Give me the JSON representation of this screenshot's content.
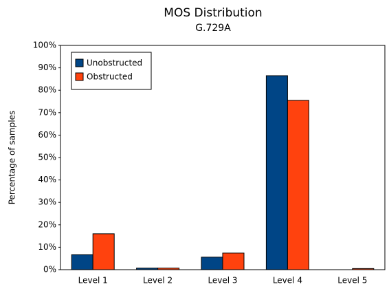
{
  "chart_data": {
    "type": "bar",
    "title": "MOS Distribution",
    "subtitle": "G.729A",
    "y_label": "Percentage of samples",
    "categories": [
      "Level 1",
      "Level 2",
      "Level 3",
      "Level 4",
      "Level 5"
    ],
    "series": [
      {
        "name": "Unobstructed",
        "color": "#004586",
        "values": [
          6.7,
          0.7,
          5.6,
          86.5,
          0
        ]
      },
      {
        "name": "Obstructed",
        "color": "#ff420e",
        "values": [
          16,
          0.7,
          7.4,
          75.5,
          0.5
        ]
      }
    ],
    "ylim": [
      0,
      100
    ],
    "yticks": [
      {
        "value": 0,
        "label": "0%"
      },
      {
        "value": 10,
        "label": "10%"
      },
      {
        "value": 20,
        "label": "20%"
      },
      {
        "value": 30,
        "label": "30%"
      },
      {
        "value": 40,
        "label": "40%"
      },
      {
        "value": 50,
        "label": "50%"
      },
      {
        "value": 60,
        "label": "60%"
      },
      {
        "value": 70,
        "label": "70%"
      },
      {
        "value": 80,
        "label": "80%"
      },
      {
        "value": 90,
        "label": "90%"
      },
      {
        "value": 100,
        "label": "100%"
      }
    ],
    "grid": false,
    "legend": "top-left"
  }
}
